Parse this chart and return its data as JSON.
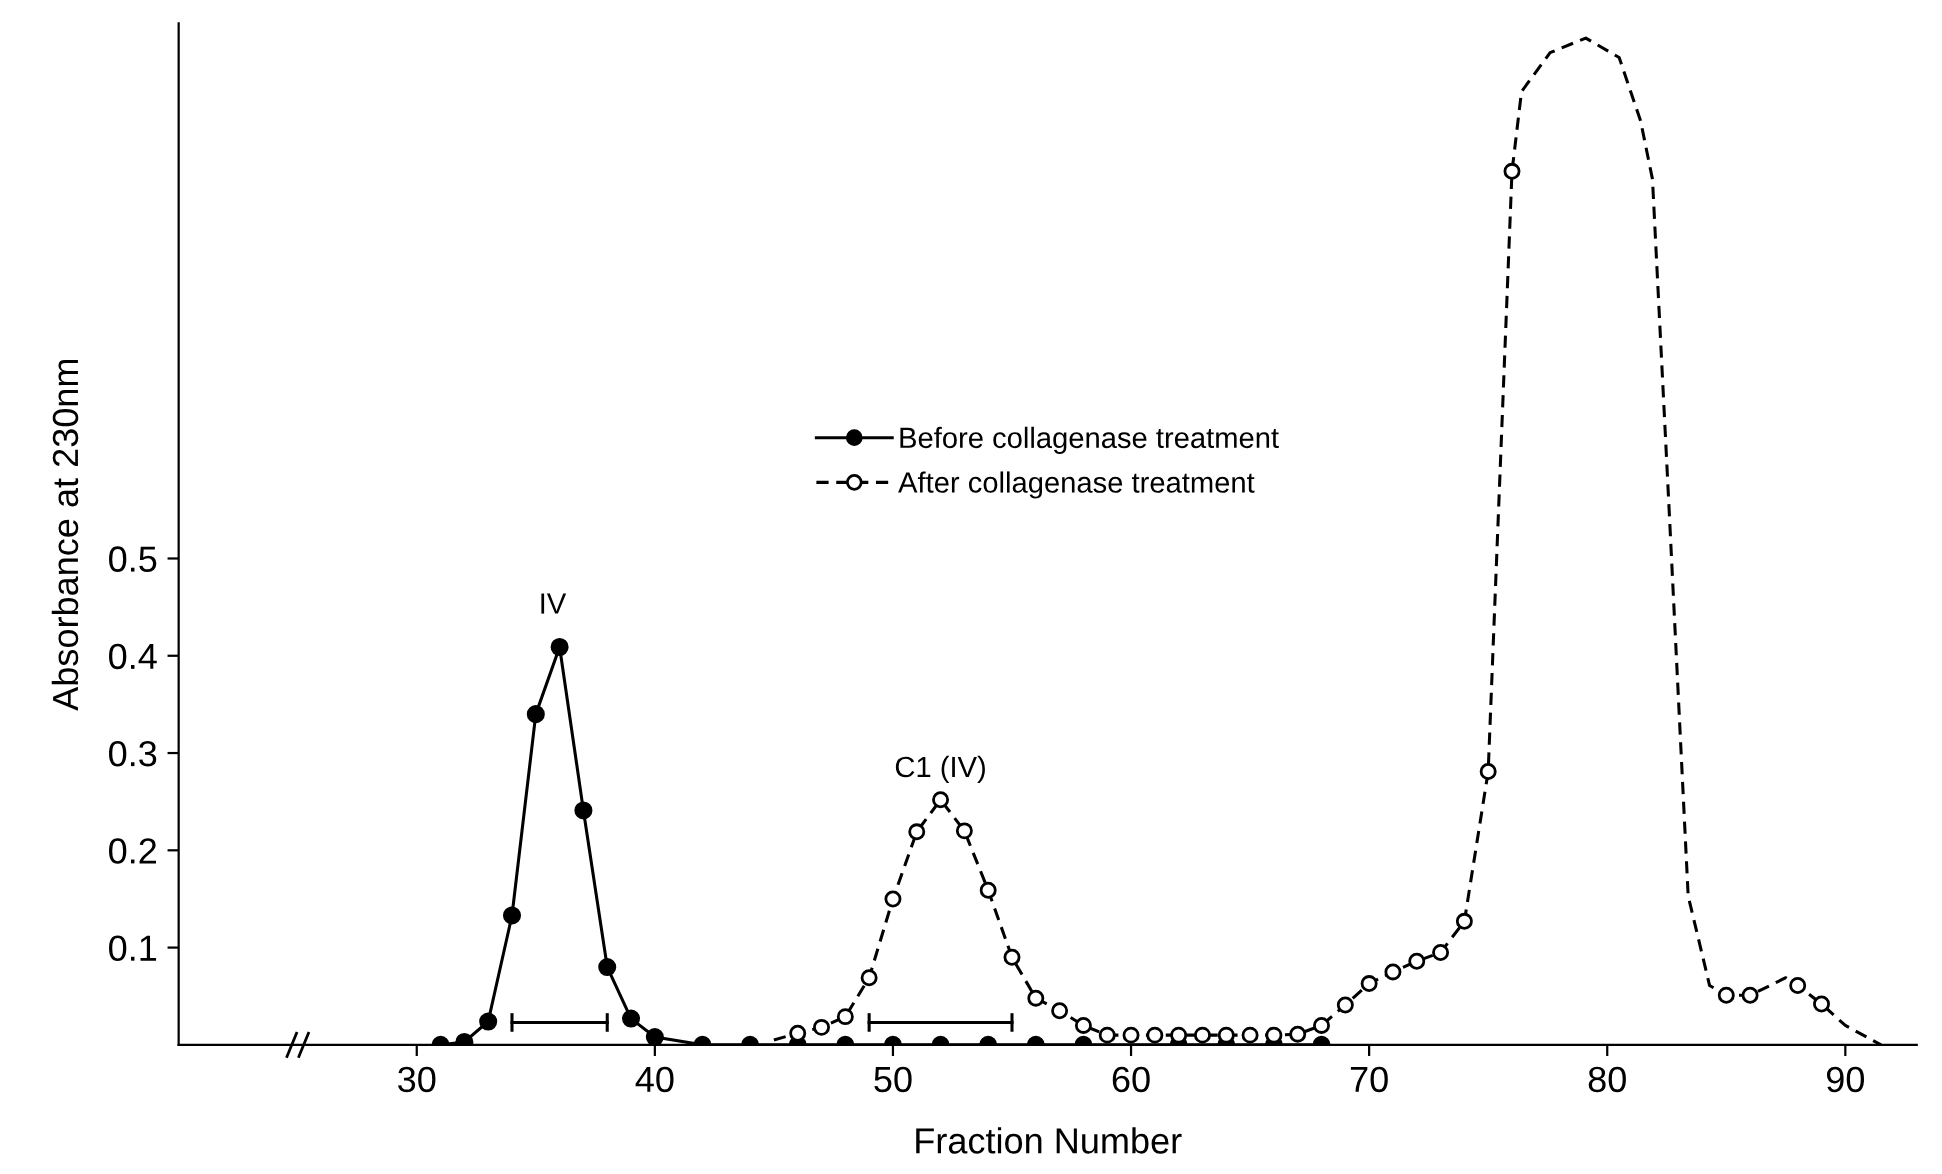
{
  "chart_data": {
    "type": "line",
    "xlabel": "Fraction Number",
    "ylabel": "Absorbance at 230nm",
    "xlim": [
      20,
      93
    ],
    "ylim": [
      0,
      1.05
    ],
    "xticks": [
      30,
      40,
      50,
      60,
      70,
      80,
      90
    ],
    "yticks": [
      0.1,
      0.2,
      0.3,
      0.4,
      0.5
    ],
    "grid": false,
    "legend": "top",
    "series": [
      {
        "name": "Before collagenase treatment",
        "color": "#000000",
        "marker": "circle",
        "line_style": "solid",
        "x": [
          31,
          32,
          33,
          34,
          35,
          36,
          37,
          38,
          39,
          40,
          42,
          44,
          46,
          48,
          50,
          52,
          54,
          56,
          58,
          62,
          64,
          66,
          68
        ],
        "values": [
          0.0,
          0.003,
          0.024,
          0.133,
          0.34,
          0.409,
          0.241,
          0.08,
          0.027,
          0.008,
          0.0,
          0.0,
          0.0,
          0.0,
          0.0,
          0.0,
          0.0,
          0.0,
          0.0,
          0.0,
          0.0,
          0.0,
          0.0
        ]
      },
      {
        "name": "After collagenase treatment",
        "type": "scatter",
        "color": "#000000",
        "marker": "circle",
        "line_style": "dashed",
        "x": [
          46,
          47,
          48,
          49,
          50,
          51,
          52,
          53,
          54,
          55,
          56,
          57,
          58,
          59,
          60,
          61,
          62,
          63,
          64,
          65,
          66,
          67,
          68,
          69,
          70,
          71,
          72,
          73,
          74,
          75,
          76,
          85,
          86,
          88,
          89
        ],
        "values": [
          0.012,
          0.018,
          0.029,
          0.069,
          0.15,
          0.219,
          0.252,
          0.22,
          0.159,
          0.09,
          0.048,
          0.035,
          0.02,
          0.01,
          0.01,
          0.01,
          0.01,
          0.01,
          0.01,
          0.01,
          0.01,
          0.011,
          0.02,
          0.041,
          0.063,
          0.075,
          0.086,
          0.095,
          0.127,
          0.281,
          0.898,
          0.051,
          0.051,
          0.061,
          0.042
        ]
      },
      {
        "color": "#000000",
        "marker": "none",
        "line_style": "dashed",
        "x": [
          45,
          46,
          47,
          48,
          49,
          50,
          51,
          52,
          53,
          54,
          55,
          56,
          57,
          58,
          59,
          60,
          61,
          62,
          63,
          64,
          65,
          66,
          67,
          68,
          69,
          70,
          71,
          72,
          73,
          74,
          75,
          76,
          76.4,
          77.6,
          79.1,
          80.5,
          81.4,
          81.9,
          82.6,
          83.4,
          84.3,
          85,
          86,
          87.5,
          88,
          89,
          90,
          91.5
        ],
        "values": [
          0.005,
          0.012,
          0.018,
          0.029,
          0.069,
          0.15,
          0.219,
          0.252,
          0.22,
          0.159,
          0.09,
          0.048,
          0.035,
          0.02,
          0.01,
          0.01,
          0.01,
          0.01,
          0.01,
          0.01,
          0.01,
          0.01,
          0.011,
          0.02,
          0.041,
          0.063,
          0.075,
          0.086,
          0.095,
          0.127,
          0.281,
          0.898,
          0.98,
          1.02,
          1.035,
          1.015,
          0.95,
          0.89,
          0.55,
          0.153,
          0.061,
          0.051,
          0.051,
          0.069,
          0.061,
          0.042,
          0.02,
          0.0
        ]
      },
      {
        "color": "#000000",
        "marker": "none",
        "line_style": "solid",
        "x": [
          34,
          38
        ],
        "values": [
          0.023,
          0.023
        ]
      },
      {
        "color": "#000000",
        "marker": "none",
        "line_style": "solid",
        "x": [
          49,
          55
        ],
        "values": [
          0.023,
          0.023
        ]
      }
    ],
    "annotations": [
      {
        "text": "IV",
        "x": 35.7,
        "y": 0.42
      },
      {
        "text": "C1 (IV)",
        "x": 52,
        "y": 0.252
      }
    ]
  }
}
